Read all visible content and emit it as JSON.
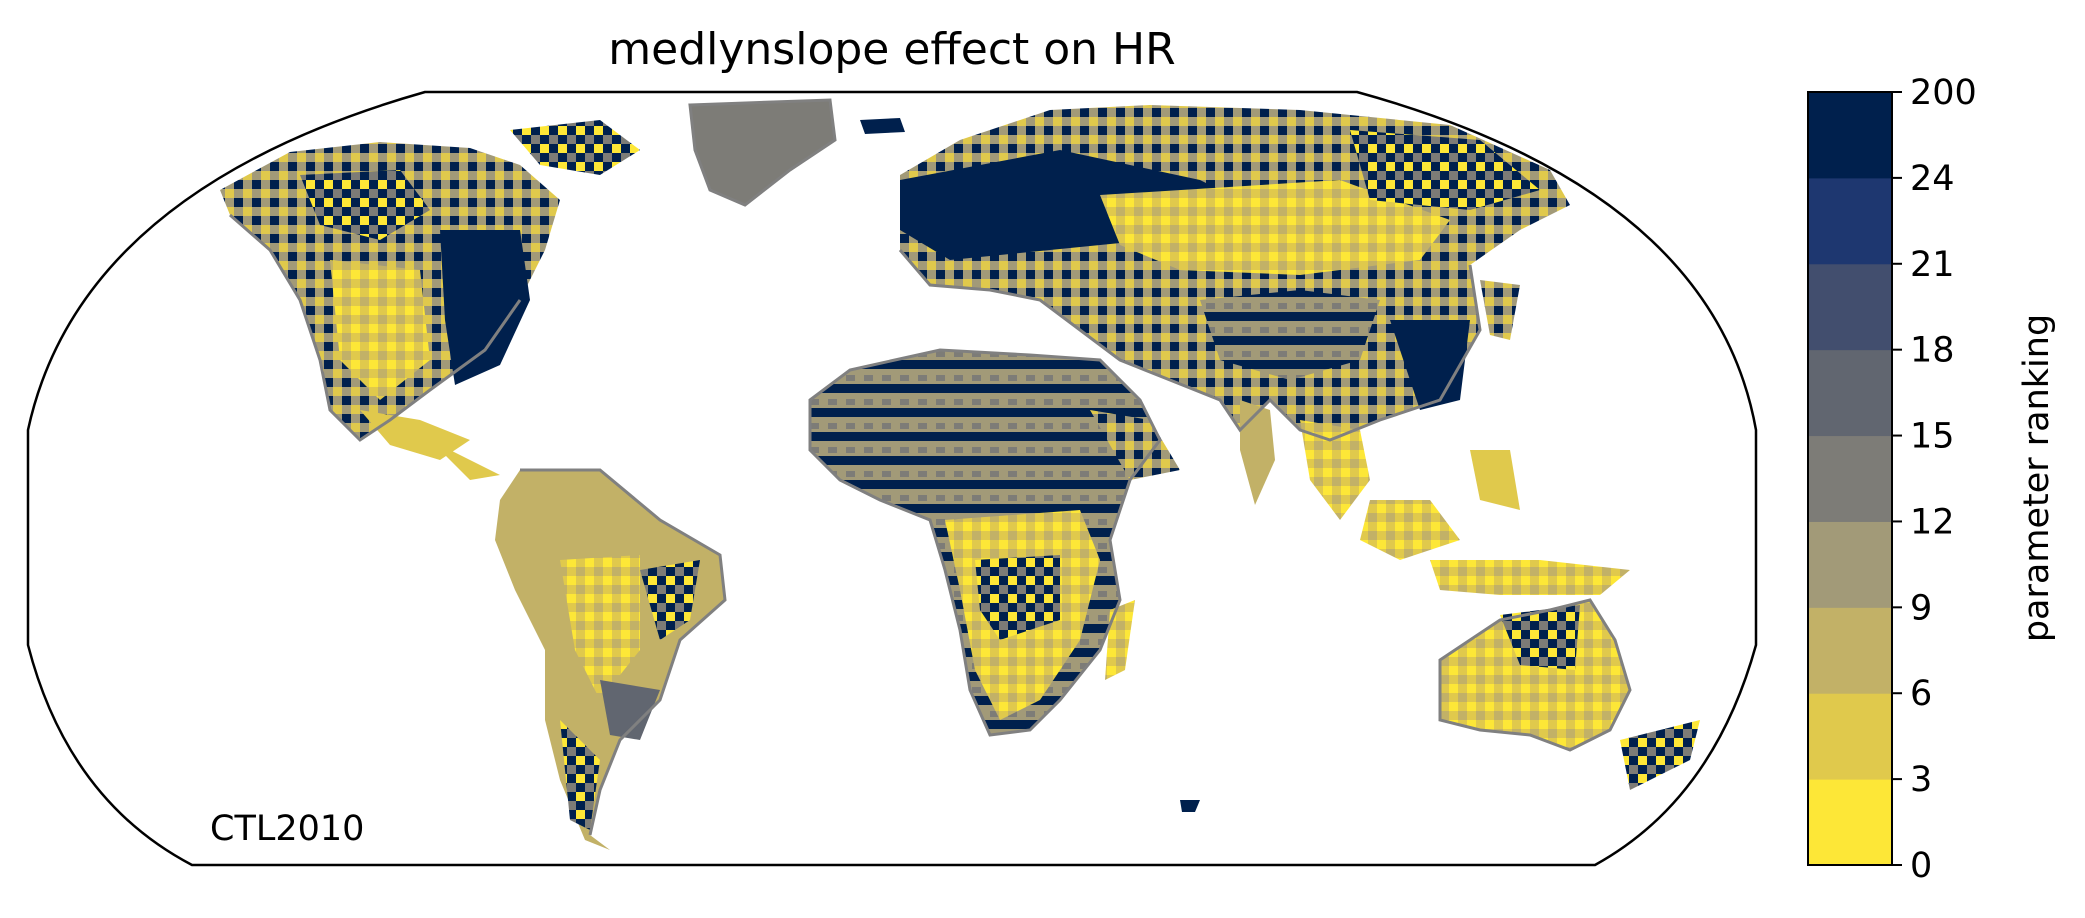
{
  "figure": {
    "title": "medlynslope effect on HR",
    "run_label": "CTL2010"
  },
  "colorbar": {
    "label": "parameter ranking",
    "ticks": [
      "200",
      "24",
      "21",
      "18",
      "15",
      "12",
      "9",
      "6",
      "3",
      "0"
    ],
    "bins": [
      {
        "range": "0-3",
        "color": "#fde737"
      },
      {
        "range": "3-6",
        "color": "#e0c94c"
      },
      {
        "range": "6-9",
        "color": "#c2b167"
      },
      {
        "range": "9-12",
        "color": "#a29a78"
      },
      {
        "range": "12-15",
        "color": "#7d7c77"
      },
      {
        "range": "15-18",
        "color": "#616670"
      },
      {
        "range": "18-21",
        "color": "#424e6e"
      },
      {
        "range": "21-24",
        "color": "#1e3770"
      },
      {
        "range": "24-200",
        "color": "#00204d"
      }
    ]
  },
  "map": {
    "projection": "robinson",
    "coastline_color": "#808080",
    "colors": {
      "low_rank": "#fde737",
      "mid_rank": "#c2b167",
      "grey_rank": "#7d7c77",
      "high_rank": "#00204d"
    }
  }
}
